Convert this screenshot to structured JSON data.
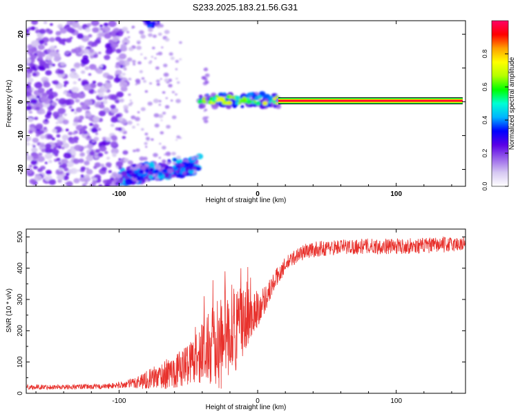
{
  "figure_title": "S233.2025.183.21.56.G31",
  "chart_data": [
    {
      "type": "heatmap",
      "title": "S233.2025.183.21.56.G31",
      "xlabel": "Height of straight line (km)",
      "ylabel": "Frequency (Hz)",
      "xlim": [
        -167,
        150
      ],
      "ylim": [
        -25,
        24
      ],
      "x_ticks": [
        -100,
        0,
        100
      ],
      "x_tick_labels": [
        "-100",
        "0",
        "100"
      ],
      "y_ticks": [
        -20,
        -10,
        0,
        10,
        20
      ],
      "y_tick_labels": [
        "-20",
        "-10",
        "0",
        "10",
        "20"
      ],
      "colorbar": {
        "label": "Normalized spectral amplitude",
        "range": [
          0,
          1
        ],
        "ticks": [
          0.0,
          0.2,
          0.4,
          0.6,
          0.8
        ],
        "tick_labels": [
          "0.0",
          "0.2",
          "0.4",
          "0.6",
          "0.8"
        ],
        "colormap": [
          "#ffffff",
          "#d6c8f2",
          "#9a63ea",
          "#5a00e6",
          "#0000ff",
          "#00b4ff",
          "#00ffd5",
          "#00ff00",
          "#b4ff00",
          "#ffff00",
          "#ffa000",
          "#ff0000",
          "#ff0066"
        ]
      },
      "features": [
        {
          "name": "carrier line",
          "x_range": [
            15,
            148
          ],
          "frequency": 0.3,
          "amplitude": 0.95
        },
        {
          "name": "carrier fragments",
          "x_range": [
            -42,
            15
          ],
          "frequency": 0.5,
          "amplitude": 0.6
        },
        {
          "name": "low-frequency band",
          "x_range": [
            -100,
            -42
          ],
          "frequency": -22,
          "amplitude": 0.35
        },
        {
          "name": "upper patch",
          "x_range": [
            -82,
            -72
          ],
          "frequency": 23,
          "amplitude": 0.25
        },
        {
          "name": "noise region",
          "x_range": [
            -167,
            -95
          ],
          "frequency_range": [
            -25,
            24
          ],
          "amplitude": 0.15
        }
      ],
      "grid": false,
      "legend": "colorbar-right"
    },
    {
      "type": "line",
      "xlabel": "Height of straight line (km)",
      "ylabel": "SNR (10 * v/v)",
      "xlim": [
        -167,
        150
      ],
      "ylim": [
        0,
        525
      ],
      "x_ticks": [
        -100,
        0,
        100
      ],
      "x_tick_labels": [
        "-100",
        "0",
        "100"
      ],
      "y_ticks": [
        0,
        100,
        200,
        300,
        400,
        500
      ],
      "y_tick_labels": [
        "0",
        "100",
        "200",
        "300",
        "400",
        "500"
      ],
      "series": [
        {
          "color": "#e8312c",
          "x": [
            -167,
            -140,
            -110,
            -95,
            -85,
            -75,
            -65,
            -55,
            -45,
            -38,
            -30,
            -25,
            -20,
            -15,
            -10,
            -5,
            0,
            5,
            10,
            15,
            20,
            25,
            30,
            35,
            45,
            60,
            80,
            100,
            120,
            150
          ],
          "y": [
            20,
            20,
            22,
            28,
            38,
            50,
            62,
            80,
            115,
            140,
            155,
            170,
            200,
            215,
            230,
            250,
            270,
            300,
            340,
            380,
            410,
            430,
            445,
            455,
            462,
            468,
            470,
            470,
            472,
            478
          ],
          "noise_amplitude": [
            8,
            8,
            8,
            12,
            25,
            35,
            50,
            60,
            80,
            110,
            140,
            160,
            150,
            140,
            110,
            80,
            60,
            45,
            35,
            30,
            25,
            25,
            25,
            25,
            25,
            25,
            25,
            25,
            25,
            25
          ]
        }
      ],
      "grid": false,
      "legend": "none"
    }
  ]
}
